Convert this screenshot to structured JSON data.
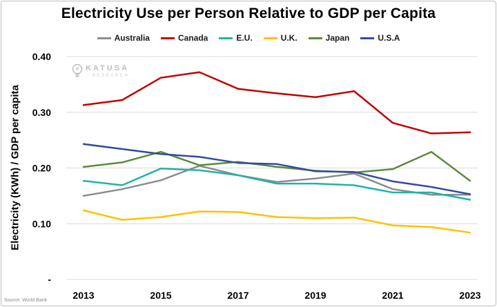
{
  "title": "Electricity Use per Person Relative to GDP per Capita",
  "source": "Source: World Bank",
  "watermark": {
    "main": "KATUSA",
    "sub": "RESEARCH"
  },
  "chart_data": {
    "type": "line",
    "title": "Electricity Use per Person Relative to GDP per Capita",
    "xlabel": "",
    "ylabel": "Electricity (KWh) / GDP per capita",
    "x": [
      2013,
      2014,
      2015,
      2016,
      2017,
      2018,
      2019,
      2020,
      2021,
      2022,
      2023
    ],
    "x_tick_labels": [
      "2013",
      "2015",
      "2017",
      "2019",
      "2021",
      "2023"
    ],
    "y_tick_labels": [
      "-",
      "0.10",
      "0.20",
      "0.30",
      "0.40"
    ],
    "ylim": [
      0,
      0.4
    ],
    "grid": "horizontal",
    "legend_position": "top",
    "series": [
      {
        "name": "Australia",
        "color": "#8c8c8c",
        "values": [
          0.15,
          0.162,
          0.178,
          0.204,
          0.187,
          0.175,
          0.181,
          0.19,
          0.162,
          0.152,
          0.152
        ]
      },
      {
        "name": "Canada",
        "color": "#c00000",
        "values": [
          0.313,
          0.322,
          0.362,
          0.372,
          0.342,
          0.334,
          0.327,
          0.338,
          0.281,
          0.262,
          0.264
        ]
      },
      {
        "name": "E.U.",
        "color": "#20b2aa",
        "values": [
          0.177,
          0.169,
          0.199,
          0.196,
          0.187,
          0.172,
          0.172,
          0.169,
          0.156,
          0.156,
          0.143
        ]
      },
      {
        "name": "U.K.",
        "color": "#ffc000",
        "values": [
          0.124,
          0.107,
          0.112,
          0.122,
          0.121,
          0.112,
          0.11,
          0.111,
          0.097,
          0.094,
          0.084
        ]
      },
      {
        "name": "Japan",
        "color": "#5a8a3a",
        "values": [
          0.202,
          0.21,
          0.229,
          0.205,
          0.211,
          0.202,
          0.195,
          0.192,
          0.198,
          0.229,
          0.177
        ]
      },
      {
        "name": "U.S.A",
        "color": "#2f4d9e",
        "values": [
          0.243,
          0.234,
          0.225,
          0.22,
          0.209,
          0.207,
          0.194,
          0.193,
          0.176,
          0.166,
          0.153
        ]
      }
    ]
  }
}
